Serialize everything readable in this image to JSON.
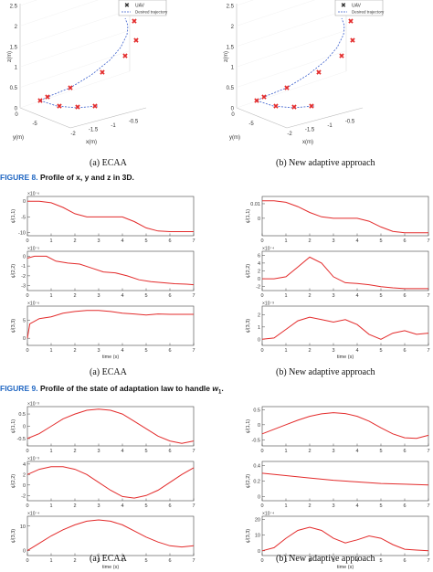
{
  "colors": {
    "series": "#e32b2b",
    "traj": "#3a5fcd",
    "figlabel": "#1f66c2"
  },
  "fig8": {
    "label": "FIGURE 8.",
    "caption": "Profile of x, y and z in 3D.",
    "legend": {
      "marker": "UAV",
      "line": "Desired trajectory"
    },
    "z_ticks": [
      "0",
      "0.5",
      "1",
      "1.5",
      "2",
      "2.5"
    ],
    "zlabel": "z(m)",
    "xlabel": "x(m)",
    "ylabel": "y(m)",
    "x_ticks": [
      "-2",
      "-1.5",
      "-1",
      "-0.5"
    ],
    "y_ticks": [
      "0",
      "-5"
    ],
    "left": {
      "caption": "(a) ECAA"
    },
    "right": {
      "caption": "(b) New adaptive approach"
    }
  },
  "fig9": {
    "label": "FIGURE 9.",
    "caption": "Profile of the state of adaptation law to handle",
    "caption_sym": "w",
    "caption_sub": "1",
    "left": {
      "caption": "(a) ECAA"
    },
    "right": {
      "caption": "(b) New adaptive approach"
    },
    "xlabel": "time (s)",
    "x_ticks": [
      "0",
      "1",
      "2",
      "3",
      "4",
      "5",
      "6",
      "7"
    ]
  },
  "fig10": {
    "left": {
      "caption": "(a) ECAA"
    },
    "right": {
      "caption": "(b) New adaptive approach"
    },
    "xlabel": "time (s)",
    "x_ticks": [
      "0",
      "1",
      "2",
      "3",
      "4",
      "5",
      "6",
      "7"
    ]
  },
  "chart_data": [
    {
      "type": "line",
      "panel": "fig9-a-1",
      "ylabel": "ψ̂(1,1)",
      "exponent": "×10⁻⁶",
      "yticks": [
        "0",
        "-5",
        "-10"
      ],
      "ylim": [
        -11,
        1.5
      ],
      "x": [
        0,
        0.5,
        1,
        1.5,
        2,
        2.5,
        3,
        3.5,
        4,
        4.5,
        5,
        5.5,
        6,
        6.5,
        7
      ],
      "values": [
        0,
        0,
        -0.5,
        -2,
        -4,
        -5,
        -5,
        -5,
        -5,
        -6.5,
        -8.5,
        -9.5,
        -9.7,
        -9.7,
        -9.7
      ]
    },
    {
      "type": "line",
      "panel": "fig9-a-2",
      "ylabel": "ψ̂(2,2)",
      "exponent": "×10⁻⁵",
      "yticks": [
        "0",
        "-1",
        "-2",
        "-3"
      ],
      "ylim": [
        -3.5,
        0.5
      ],
      "x": [
        0,
        0.3,
        0.8,
        1.2,
        1.7,
        2.2,
        2.7,
        3.2,
        3.7,
        4.2,
        4.7,
        5.2,
        5.7,
        6.2,
        6.7,
        7
      ],
      "values": [
        -0.2,
        0,
        0,
        -0.5,
        -0.7,
        -0.8,
        -1.2,
        -1.6,
        -1.7,
        -2,
        -2.4,
        -2.6,
        -2.7,
        -2.8,
        -2.85,
        -2.9
      ]
    },
    {
      "type": "line",
      "panel": "fig9-a-3",
      "ylabel": "ψ̂(3,3)",
      "exponent": "×10⁻⁶",
      "yticks": [
        "0",
        "5"
      ],
      "ylim": [
        -2,
        9
      ],
      "x": [
        0,
        0.1,
        0.5,
        1,
        1.5,
        2,
        2.5,
        3,
        3.5,
        4,
        4.5,
        5,
        5.5,
        6,
        6.5,
        7
      ],
      "values": [
        0,
        4,
        5.5,
        6,
        7,
        7.5,
        7.8,
        7.8,
        7.5,
        7,
        6.8,
        6.5,
        6.8,
        6.7,
        6.7,
        6.7
      ]
    },
    {
      "type": "line",
      "panel": "fig9-b-1",
      "ylabel": "ψ̂(1,1)",
      "yticks": [
        "0",
        "0.01"
      ],
      "ylim": [
        -0.012,
        0.015
      ],
      "x": [
        0,
        0.5,
        1,
        1.5,
        2,
        2.5,
        3,
        3.5,
        4,
        4.5,
        5,
        5.5,
        6,
        6.5,
        7
      ],
      "values": [
        0.012,
        0.012,
        0.011,
        0.008,
        0.004,
        0.001,
        0,
        0,
        0,
        -0.002,
        -0.006,
        -0.009,
        -0.01,
        -0.01,
        -0.01
      ]
    },
    {
      "type": "line",
      "panel": "fig9-b-2",
      "ylabel": "ψ̂(2,2)",
      "exponent": "×10⁻⁴",
      "yticks": [
        "0",
        "2",
        "4",
        "6",
        "-2"
      ],
      "ylim": [
        -3,
        7
      ],
      "x": [
        0,
        0.5,
        1,
        1.5,
        2,
        2.5,
        3,
        3.5,
        4,
        4.5,
        5,
        5.5,
        6,
        6.5,
        7
      ],
      "values": [
        0,
        0,
        0.5,
        3,
        5.5,
        4,
        0.5,
        -1,
        -1.2,
        -1.5,
        -2,
        -2.3,
        -2.5,
        -2.5,
        -2.5
      ]
    },
    {
      "type": "line",
      "panel": "fig9-b-3",
      "ylabel": "ψ̂(3,3)",
      "exponent": "×10⁻³",
      "yticks": [
        "0",
        "1",
        "2"
      ],
      "ylim": [
        -0.5,
        2.7
      ],
      "x": [
        0,
        0.5,
        1,
        1.5,
        2,
        2.5,
        3,
        3.5,
        4,
        4.5,
        5,
        5.5,
        6,
        6.5,
        7
      ],
      "values": [
        0,
        0.1,
        0.8,
        1.5,
        1.8,
        1.6,
        1.4,
        1.6,
        1.2,
        0.4,
        0,
        0.5,
        0.7,
        0.4,
        0.5
      ]
    },
    {
      "type": "line",
      "panel": "fig10-a-1",
      "ylabel": "ψ̂(1,1)",
      "exponent": "×10⁻³",
      "yticks": [
        "0.5",
        "0",
        "-0.5"
      ],
      "ylim": [
        -0.8,
        0.8
      ],
      "x": [
        0,
        0.5,
        1,
        1.5,
        2,
        2.5,
        3,
        3.5,
        4,
        4.5,
        5,
        5.5,
        6,
        6.5,
        7
      ],
      "values": [
        -0.5,
        -0.3,
        0,
        0.3,
        0.5,
        0.65,
        0.7,
        0.65,
        0.5,
        0.2,
        -0.1,
        -0.4,
        -0.6,
        -0.7,
        -0.6
      ]
    },
    {
      "type": "line",
      "panel": "fig10-a-2",
      "ylabel": "ψ̂(2,2)",
      "exponent": "×10⁻³",
      "yticks": [
        "4",
        "2",
        "0",
        "-2"
      ],
      "ylim": [
        -3,
        4.5
      ],
      "x": [
        0,
        0.5,
        1,
        1.5,
        2,
        2.5,
        3,
        3.5,
        4,
        4.5,
        5,
        5.5,
        6,
        6.5,
        7
      ],
      "values": [
        2,
        3,
        3.5,
        3.5,
        3,
        2,
        0.5,
        -1,
        -2.2,
        -2.5,
        -2,
        -1,
        0.5,
        2,
        3.3
      ]
    },
    {
      "type": "line",
      "panel": "fig10-a-3",
      "ylabel": "ψ̂(3,3)",
      "exponent": "×10⁻⁴",
      "yticks": [
        "0",
        "10"
      ],
      "ylim": [
        -2,
        14
      ],
      "x": [
        0,
        0.5,
        1,
        1.5,
        2,
        2.5,
        3,
        3.5,
        4,
        4.5,
        5,
        5.5,
        6,
        6.5,
        7
      ],
      "values": [
        0,
        3,
        6,
        8.5,
        10.5,
        12,
        12.5,
        12,
        10.5,
        8,
        5.5,
        3.5,
        2,
        1.5,
        2
      ]
    },
    {
      "type": "line",
      "panel": "fig10-b-1",
      "ylabel": "ψ̂(1,1)",
      "yticks": [
        "0.5",
        "0",
        "-0.5"
      ],
      "ylim": [
        -0.7,
        0.6
      ],
      "x": [
        0,
        0.5,
        1,
        1.5,
        2,
        2.5,
        3,
        3.5,
        4,
        4.5,
        5,
        5.5,
        6,
        6.5,
        7
      ],
      "values": [
        -0.3,
        -0.15,
        0,
        0.15,
        0.28,
        0.36,
        0.4,
        0.37,
        0.28,
        0.12,
        -0.1,
        -0.3,
        -0.43,
        -0.45,
        -0.35
      ]
    },
    {
      "type": "line",
      "panel": "fig10-b-2",
      "ylabel": "ψ̂(2,2)",
      "yticks": [
        "0.4",
        "0.2",
        "0"
      ],
      "ylim": [
        -0.05,
        0.45
      ],
      "x": [
        0,
        1,
        2,
        3,
        4,
        5,
        6,
        7
      ],
      "values": [
        0.3,
        0.27,
        0.24,
        0.21,
        0.19,
        0.17,
        0.16,
        0.15
      ]
    },
    {
      "type": "line",
      "panel": "fig10-b-3",
      "ylabel": "ψ̂(3,3)",
      "exponent": "×10⁻⁴",
      "yticks": [
        "0",
        "10",
        "20"
      ],
      "ylim": [
        -3,
        22
      ],
      "x": [
        0,
        0.5,
        1,
        1.5,
        2,
        2.5,
        3,
        3.5,
        4,
        4.5,
        5,
        5.5,
        6,
        6.5,
        7
      ],
      "values": [
        0,
        2,
        8,
        13,
        15,
        13,
        8,
        5,
        7,
        9.5,
        8,
        4,
        1,
        0.5,
        0
      ]
    }
  ]
}
